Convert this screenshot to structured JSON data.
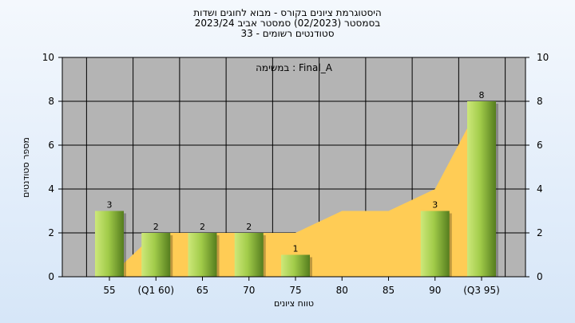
{
  "header": {
    "title_lines": [
      "היסטוגרמת ציונים בקורס - מבוא לחוגים ושדות",
      "בסמסטר  (02/2023)  סמסטר אביב 2023/24",
      "סטודנטים רשומים - 33"
    ]
  },
  "chart_data": {
    "type": "bar",
    "categories": [
      "55",
      "(Q1 60)",
      "65",
      "70",
      "75",
      "80",
      "85",
      "90",
      "(Q3 95)"
    ],
    "values": [
      3,
      2,
      2,
      2,
      1,
      0,
      0,
      3,
      8
    ],
    "value_labels": [
      "3",
      "2",
      "2",
      "2",
      "1",
      "",
      "",
      "3",
      "8"
    ],
    "area": {
      "values": [
        0,
        2,
        2,
        2,
        2,
        3,
        3,
        4,
        8
      ]
    },
    "xlabel": "טווח ציונים",
    "ylabel": "מספר סטודנטים",
    "ylim": [
      0,
      10
    ],
    "yticks": [
      "0",
      "2",
      "4",
      "6",
      "8",
      "10"
    ],
    "annotation": "במשימה : Final_A",
    "grid": true,
    "colors": {
      "bar": "#8cc63f",
      "area": "#ffcc55",
      "plot_bg": "#b4b4b4",
      "grid": "#000000"
    }
  }
}
